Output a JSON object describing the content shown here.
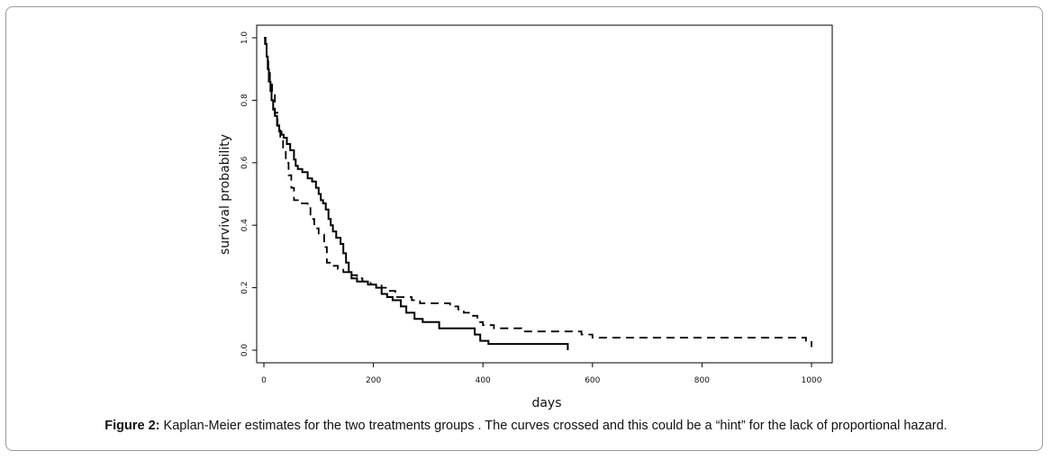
{
  "caption": {
    "label": "Figure 2:",
    "text": " Kaplan-Meier estimates for the two treatments groups . The curves crossed and this could be a “hint” for the lack of proportional hazard."
  },
  "chart_data": {
    "type": "line",
    "step": true,
    "title": "",
    "xlabel": "days",
    "ylabel": "survival probability",
    "xlim": [
      0,
      1000
    ],
    "ylim": [
      0,
      1.0
    ],
    "xticks": [
      "0",
      "200",
      "400",
      "600",
      "800",
      "1000"
    ],
    "yticks": [
      "0.0",
      "0.2",
      "0.4",
      "0.6",
      "0.8",
      "1.0"
    ],
    "grid": false,
    "legend": "none",
    "series": [
      {
        "style": "solid",
        "color": "#000000",
        "x": [
          0,
          3,
          5,
          7,
          9,
          12,
          14,
          17,
          20,
          24,
          28,
          32,
          36,
          42,
          48,
          55,
          58,
          62,
          70,
          80,
          88,
          95,
          100,
          104,
          108,
          113,
          118,
          122,
          126,
          132,
          140,
          145,
          150,
          155,
          160,
          170,
          190,
          205,
          215,
          225,
          235,
          250,
          260,
          275,
          290,
          320,
          370,
          385,
          395,
          410,
          555
        ],
        "y": [
          1.0,
          0.98,
          0.94,
          0.9,
          0.86,
          0.83,
          0.8,
          0.77,
          0.75,
          0.72,
          0.7,
          0.69,
          0.68,
          0.66,
          0.64,
          0.61,
          0.59,
          0.58,
          0.57,
          0.55,
          0.54,
          0.52,
          0.5,
          0.48,
          0.47,
          0.45,
          0.42,
          0.4,
          0.38,
          0.36,
          0.34,
          0.31,
          0.28,
          0.25,
          0.23,
          0.22,
          0.21,
          0.2,
          0.18,
          0.17,
          0.16,
          0.14,
          0.12,
          0.1,
          0.09,
          0.07,
          0.07,
          0.05,
          0.03,
          0.02,
          0.0
        ]
      },
      {
        "style": "dashed",
        "color": "#000000",
        "x": [
          0,
          2,
          5,
          8,
          11,
          15,
          20,
          25,
          30,
          35,
          40,
          45,
          50,
          55,
          62,
          80,
          85,
          92,
          100,
          110,
          115,
          125,
          135,
          145,
          160,
          170,
          180,
          195,
          215,
          230,
          240,
          270,
          285,
          320,
          340,
          355,
          365,
          380,
          390,
          400,
          420,
          470,
          580,
          600,
          720,
          990,
          1000
        ],
        "y": [
          1.0,
          0.97,
          0.94,
          0.9,
          0.86,
          0.82,
          0.76,
          0.71,
          0.67,
          0.64,
          0.6,
          0.56,
          0.52,
          0.48,
          0.47,
          0.46,
          0.42,
          0.39,
          0.37,
          0.33,
          0.28,
          0.27,
          0.26,
          0.25,
          0.24,
          0.23,
          0.22,
          0.21,
          0.2,
          0.19,
          0.17,
          0.16,
          0.15,
          0.15,
          0.14,
          0.13,
          0.12,
          0.11,
          0.09,
          0.08,
          0.07,
          0.06,
          0.05,
          0.04,
          0.04,
          0.03,
          0.01
        ]
      }
    ]
  }
}
